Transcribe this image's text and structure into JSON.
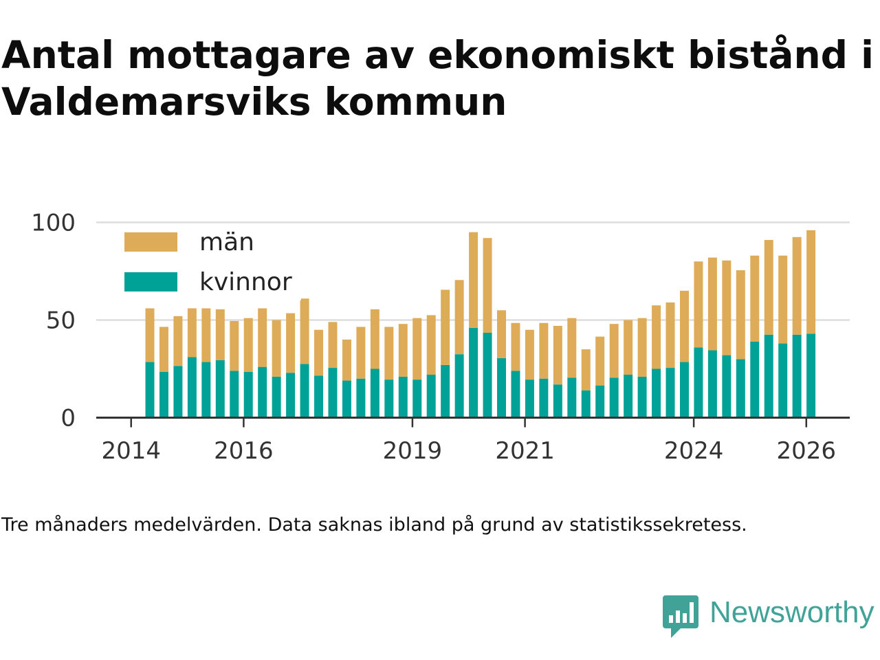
{
  "header": {
    "title": "Antal mottagare av ekonomiskt bistånd i Valdemarsviks kommun"
  },
  "footer": {
    "note": "Tre månaders medelvärden. Data saknas ibland på grund av statistikssekretess."
  },
  "brand": {
    "name": "Newsworthy",
    "icon": "newsworthy-logo-icon",
    "color": "#41a398"
  },
  "chart_data": {
    "type": "bar",
    "stacked": true,
    "title": "Antal mottagare av ekonomiskt bistånd i Valdemarsviks kommun",
    "xlabel": "",
    "ylabel": "",
    "ylim": [
      0,
      100
    ],
    "yticks": [
      0,
      50,
      100
    ],
    "grid": true,
    "legend_position": "top-left",
    "x_tick_labels": [
      "2014",
      "2016",
      "2019",
      "2021",
      "2024",
      "2026"
    ],
    "categories": [
      "2014-05",
      "2014-08",
      "2014-11",
      "2015-02",
      "2015-05",
      "2015-08",
      "2015-11",
      "2016-02",
      "2016-05",
      "2016-08",
      "2016-11",
      "2017-02",
      "2017-05",
      "2017-08",
      "2017-11",
      "2018-02",
      "2018-05",
      "2018-08",
      "2018-11",
      "2019-02",
      "2019-05",
      "2019-08",
      "2019-11",
      "2020-02",
      "2020-05",
      "2020-08",
      "2020-11",
      "2021-02",
      "2021-05",
      "2021-08",
      "2021-11",
      "2022-02",
      "2022-05",
      "2022-08",
      "2022-11",
      "2023-02",
      "2023-05",
      "2023-08",
      "2023-11",
      "2024-02",
      "2024-05",
      "2024-08",
      "2024-11",
      "2025-02",
      "2025-05",
      "2025-08",
      "2025-11",
      "2026-02"
    ],
    "series": [
      {
        "name": "kvinnor",
        "color": "#00a298",
        "values": [
          28.5,
          23.5,
          26.5,
          31,
          28.5,
          29.5,
          24,
          23.5,
          26,
          21,
          23,
          27.5,
          21.5,
          25.5,
          19,
          20,
          25,
          19.5,
          21,
          19.5,
          22,
          27,
          32.5,
          46,
          43.5,
          30.5,
          24,
          19.5,
          20,
          17,
          20.5,
          14,
          16.5,
          20.5,
          22,
          21,
          25,
          25.5,
          28.5,
          36,
          34.5,
          32,
          30,
          39,
          42.5,
          38,
          42.5,
          43
        ]
      },
      {
        "name": "män",
        "color": "#deac58",
        "values": [
          27.5,
          23,
          25.5,
          25,
          27.5,
          26,
          25.5,
          27.5,
          30,
          29,
          30.5,
          33.5,
          23.5,
          23.5,
          21,
          26.5,
          30.5,
          27,
          27,
          31.5,
          30.5,
          38.5,
          38,
          49,
          48.5,
          24.5,
          24.5,
          25.5,
          28.5,
          30,
          30.5,
          21,
          25,
          27.5,
          28,
          30,
          32.5,
          33.5,
          36.5,
          44,
          47.5,
          48.5,
          45.5,
          44,
          48.5,
          45,
          50,
          53
        ]
      }
    ]
  }
}
